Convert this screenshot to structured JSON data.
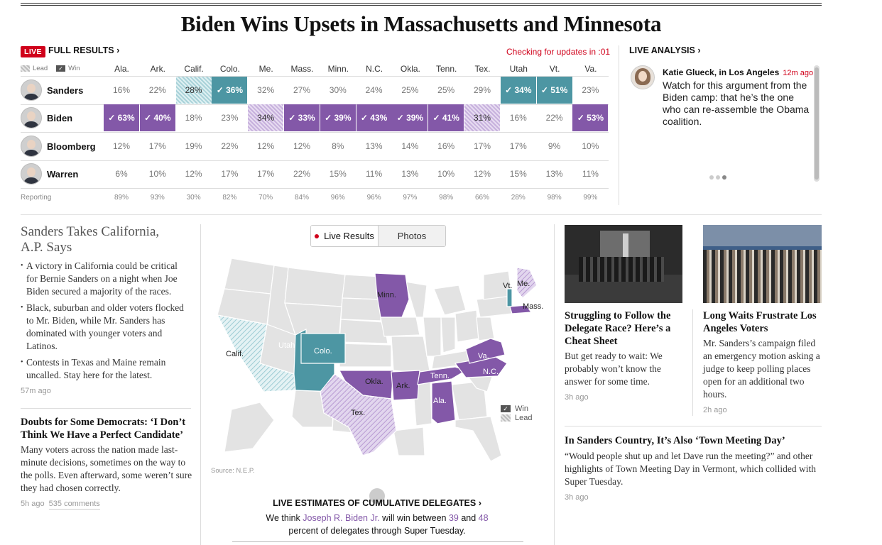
{
  "headline": "Biden Wins Upsets in Massachusetts and Minnesota",
  "results": {
    "live_badge": "LIVE",
    "full_results_label": "FULL RESULTS ›",
    "checking_text": "Checking for updates in :01",
    "legend_lead": "Lead",
    "legend_win": "Win",
    "states": [
      "Ala.",
      "Ark.",
      "Calif.",
      "Colo.",
      "Me.",
      "Mass.",
      "Minn.",
      "N.C.",
      "Okla.",
      "Tenn.",
      "Tex.",
      "Utah",
      "Vt.",
      "Va."
    ],
    "candidates": [
      {
        "name": "Sanders",
        "cells": [
          {
            "v": "16%",
            "s": ""
          },
          {
            "v": "22%",
            "s": ""
          },
          {
            "v": "28%",
            "s": "lead-teal"
          },
          {
            "v": "✓ 36%",
            "s": "win-teal"
          },
          {
            "v": "32%",
            "s": ""
          },
          {
            "v": "27%",
            "s": ""
          },
          {
            "v": "30%",
            "s": ""
          },
          {
            "v": "24%",
            "s": ""
          },
          {
            "v": "25%",
            "s": ""
          },
          {
            "v": "25%",
            "s": ""
          },
          {
            "v": "29%",
            "s": ""
          },
          {
            "v": "✓ 34%",
            "s": "win-teal"
          },
          {
            "v": "✓ 51%",
            "s": "win-teal"
          },
          {
            "v": "23%",
            "s": ""
          }
        ]
      },
      {
        "name": "Biden",
        "cells": [
          {
            "v": "✓ 63%",
            "s": "win-purple"
          },
          {
            "v": "✓ 40%",
            "s": "win-purple"
          },
          {
            "v": "18%",
            "s": ""
          },
          {
            "v": "23%",
            "s": ""
          },
          {
            "v": "34%",
            "s": "lead-purple"
          },
          {
            "v": "✓ 33%",
            "s": "win-purple"
          },
          {
            "v": "✓ 39%",
            "s": "win-purple"
          },
          {
            "v": "✓ 43%",
            "s": "win-purple"
          },
          {
            "v": "✓ 39%",
            "s": "win-purple"
          },
          {
            "v": "✓ 41%",
            "s": "win-purple"
          },
          {
            "v": "31%",
            "s": "lead-purple"
          },
          {
            "v": "16%",
            "s": ""
          },
          {
            "v": "22%",
            "s": ""
          },
          {
            "v": "✓ 53%",
            "s": "win-purple"
          }
        ]
      },
      {
        "name": "Bloomberg",
        "cells": [
          {
            "v": "12%",
            "s": ""
          },
          {
            "v": "17%",
            "s": ""
          },
          {
            "v": "19%",
            "s": ""
          },
          {
            "v": "22%",
            "s": ""
          },
          {
            "v": "12%",
            "s": ""
          },
          {
            "v": "12%",
            "s": ""
          },
          {
            "v": "8%",
            "s": ""
          },
          {
            "v": "13%",
            "s": ""
          },
          {
            "v": "14%",
            "s": ""
          },
          {
            "v": "16%",
            "s": ""
          },
          {
            "v": "17%",
            "s": ""
          },
          {
            "v": "17%",
            "s": ""
          },
          {
            "v": "9%",
            "s": ""
          },
          {
            "v": "10%",
            "s": ""
          }
        ]
      },
      {
        "name": "Warren",
        "cells": [
          {
            "v": "6%",
            "s": ""
          },
          {
            "v": "10%",
            "s": ""
          },
          {
            "v": "12%",
            "s": ""
          },
          {
            "v": "17%",
            "s": ""
          },
          {
            "v": "17%",
            "s": ""
          },
          {
            "v": "22%",
            "s": ""
          },
          {
            "v": "15%",
            "s": ""
          },
          {
            "v": "11%",
            "s": ""
          },
          {
            "v": "13%",
            "s": ""
          },
          {
            "v": "10%",
            "s": ""
          },
          {
            "v": "12%",
            "s": ""
          },
          {
            "v": "15%",
            "s": ""
          },
          {
            "v": "13%",
            "s": ""
          },
          {
            "v": "11%",
            "s": ""
          }
        ]
      }
    ],
    "reporting_label": "Reporting",
    "reporting": [
      "89%",
      "93%",
      "30%",
      "82%",
      "70%",
      "84%",
      "96%",
      "96%",
      "97%",
      "98%",
      "66%",
      "28%",
      "98%",
      "99%"
    ]
  },
  "live_analysis": {
    "title": "LIVE ANALYSIS ›",
    "author": "Katie Glueck, in Los Angeles",
    "time": "12m ago",
    "text": "Watch for this argument from the Biden camp: that he’s the one who can re-assemble the Obama coalition."
  },
  "left": {
    "story1_title": "Sanders Takes California, A.P. Says",
    "bullets": [
      "A victory in California could be critical for Bernie Sanders on a night when Joe Biden secured a majority of the races.",
      "Black, suburban and older voters flocked to Mr. Biden, while Mr. Sanders has dominated with younger voters and Latinos.",
      "Contests in Texas and Maine remain uncalled. Stay here for the latest."
    ],
    "story1_time": "57m ago",
    "story2_title": "Doubts for Some Democrats: ‘I Don’t Think We Have a Perfect Candidate’",
    "story2_body": "Many voters across the nation made last-minute decisions, sometimes on the way to the polls. Even afterward, some weren’t sure they had chosen correctly.",
    "story2_time": "5h ago",
    "story2_comments": "535 comments"
  },
  "map": {
    "tab_live": "Live Results",
    "tab_photos": "Photos",
    "labels": {
      "minn": "Minn.",
      "vt": "Vt.",
      "me": "Me.",
      "mass": "Mass.",
      "calif": "Calif.",
      "utah": "Utah",
      "colo": "Colo.",
      "va": "Va.",
      "tenn": "Tenn.",
      "nc": "N.C.",
      "okla": "Okla.",
      "ark": "Ark.",
      "ala": "Ala.",
      "tex": "Tex."
    },
    "legend_win": "Win",
    "legend_lead": "Lead",
    "source": "Source: N.E.P.",
    "colors": {
      "purple": "#8358a8",
      "teal": "#4d96a3",
      "gray": "#e6e6e6"
    }
  },
  "delegates": {
    "title": "LIVE ESTIMATES OF CUMULATIVE DELEGATES ›",
    "pre": "We think ",
    "name": "Joseph R. Biden Jr.",
    "mid": " will win between ",
    "low": "39",
    "and": " and ",
    "high": "48",
    "post": "percent of delegates through Super Tuesday."
  },
  "right": {
    "story_a_title": "Struggling to Follow the Delegate Race? Here’s a Cheat Sheet",
    "story_a_body": "But get ready to wait: We probably won’t know the answer for some time.",
    "story_a_time": "3h ago",
    "story_b_title": "Long Waits Frustrate Los Angeles Voters",
    "story_b_body": "Mr. Sanders’s campaign filed an emergency motion asking a judge to keep polling places open for an additional two hours.",
    "story_b_time": "2h ago",
    "story_c_title": "In Sanders Country, It’s Also ‘Town Meeting Day’",
    "story_c_body": "“Would people shut up and let Dave run the meeting?” and other highlights of Town Meeting Day in Vermont, which collided with Super Tuesday.",
    "story_c_time": "3h ago"
  }
}
